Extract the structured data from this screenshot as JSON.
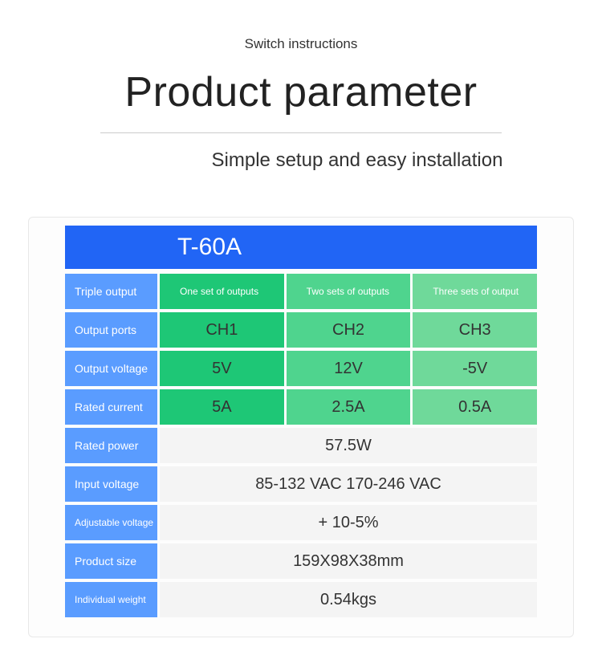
{
  "header": {
    "small_subtitle": "Switch instructions",
    "title": "Product parameter",
    "tagline": "Simple setup and easy installation"
  },
  "card": {
    "model": "T-60A",
    "colors": {
      "model_bg": "#2165f5",
      "label_bg": "#5a9cff",
      "green1": "#1ec776",
      "green2": "#4fd48e",
      "green3": "#6fd99a",
      "grey_bg": "#f4f4f4"
    },
    "triple_row": {
      "label": "Triple output",
      "cols": [
        "One set of outputs",
        "Two sets of outputs",
        "Three sets of output"
      ]
    },
    "ports_row": {
      "label": "Output ports",
      "cols": [
        "CH1",
        "CH2",
        "CH3"
      ]
    },
    "voltage_row": {
      "label": "Output voltage",
      "cols": [
        "5V",
        "12V",
        "-5V"
      ]
    },
    "current_row": {
      "label": "Rated current",
      "cols": [
        "5A",
        "2.5A",
        "0.5A"
      ]
    },
    "single_rows": [
      {
        "label": "Rated power",
        "value": "57.5W"
      },
      {
        "label": "Input voltage",
        "value": "85-132 VAC 170-246 VAC"
      },
      {
        "label": "Adjustable voltage",
        "value": "+ 10-5%",
        "small": true
      },
      {
        "label": "Product size",
        "value": "159X98X38mm"
      },
      {
        "label": "Individual weight",
        "value": "0.54kgs",
        "small": true
      }
    ]
  }
}
